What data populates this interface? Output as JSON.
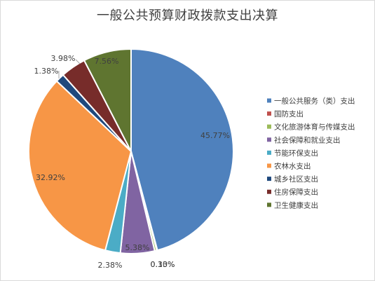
{
  "chart_data": {
    "type": "pie",
    "title": "一般公共预算财政拨款支出决算",
    "legend_position": "right",
    "series": [
      {
        "name": "一般公共服务（类）支出",
        "value": 45.77,
        "label": "45.77%",
        "color": "#4F81BD"
      },
      {
        "name": "国防支出",
        "value": 0.1,
        "label": "0.10%",
        "color": "#C0504D"
      },
      {
        "name": "文化旅游体育与传媒支出",
        "value": 0.33,
        "label": "0.33%",
        "color": "#9BBB59"
      },
      {
        "name": "社会保障和就业支出",
        "value": 5.38,
        "label": "5.38%",
        "color": "#8064A2"
      },
      {
        "name": "节能环保支出",
        "value": 2.38,
        "label": "2.38%",
        "color": "#4BACC6"
      },
      {
        "name": "农林水支出",
        "value": 32.92,
        "label": "32.92%",
        "color": "#F79646"
      },
      {
        "name": "城乡社区支出",
        "value": 1.38,
        "label": "1.38%",
        "color": "#1F497D"
      },
      {
        "name": "住房保障支出",
        "value": 3.98,
        "label": "3.98%",
        "color": "#772C2A"
      },
      {
        "name": "卫生健康支出",
        "value": 7.56,
        "label": "7.56%",
        "color": "#5F7530"
      }
    ]
  }
}
